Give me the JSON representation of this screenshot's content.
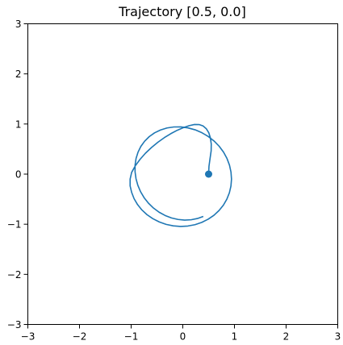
{
  "chart_data": {
    "type": "line",
    "title": "Trajectory [0.5, 0.0]",
    "xlabel": "",
    "ylabel": "",
    "xlim": [
      -3,
      3
    ],
    "ylim": [
      -3,
      3
    ],
    "xticks": [
      -3,
      -2,
      -1,
      0,
      1,
      2,
      3
    ],
    "yticks": [
      -3,
      -2,
      -1,
      0,
      1,
      2,
      3
    ],
    "grid": false,
    "series": [
      {
        "color": "#1f77b4",
        "x": [
          0.5,
          0.507,
          0.528,
          0.549,
          0.551,
          0.534,
          0.503,
          0.455,
          0.393,
          0.316,
          0.226,
          0.125,
          0.013,
          -0.107,
          -0.231,
          -0.357,
          -0.483,
          -0.606,
          -0.722,
          -0.827,
          -0.918,
          -0.99,
          -1.02,
          -1.02,
          -0.99,
          -0.943,
          -0.876,
          -0.792,
          -0.692,
          -0.579,
          -0.454,
          -0.322,
          -0.184,
          -0.043,
          0.098,
          0.236,
          0.368,
          0.491,
          0.603,
          0.702,
          0.786,
          0.853,
          0.902,
          0.932,
          0.943,
          0.933,
          0.904,
          0.856,
          0.789,
          0.705,
          0.606,
          0.493,
          0.37,
          0.239,
          0.102,
          -0.036,
          -0.173,
          -0.306,
          -0.431,
          -0.547,
          -0.65,
          -0.739,
          -0.812,
          -0.867,
          -0.905,
          -0.924,
          -0.924,
          -0.906,
          -0.87,
          -0.817,
          -0.748,
          -0.664,
          -0.567,
          -0.459,
          -0.342,
          -0.219,
          -0.092,
          0.036,
          0.162,
          0.283,
          0.397
        ],
        "y": [
          0.0,
          0.158,
          0.314,
          0.466,
          0.602,
          0.724,
          0.826,
          0.906,
          0.961,
          0.989,
          0.99,
          0.967,
          0.928,
          0.875,
          0.808,
          0.728,
          0.635,
          0.531,
          0.418,
          0.296,
          0.168,
          0.035,
          -0.1,
          -0.234,
          -0.366,
          -0.491,
          -0.608,
          -0.715,
          -0.81,
          -0.89,
          -0.955,
          -1.003,
          -1.033,
          -1.044,
          -1.036,
          -1.009,
          -0.963,
          -0.9,
          -0.821,
          -0.726,
          -0.619,
          -0.5,
          -0.372,
          -0.238,
          -0.099,
          0.04,
          0.178,
          0.311,
          0.438,
          0.555,
          0.66,
          0.751,
          0.826,
          0.884,
          0.922,
          0.942,
          0.941,
          0.921,
          0.881,
          0.823,
          0.748,
          0.657,
          0.553,
          0.437,
          0.312,
          0.18,
          0.045,
          -0.091,
          -0.224,
          -0.352,
          -0.472,
          -0.581,
          -0.678,
          -0.76,
          -0.826,
          -0.875,
          -0.905,
          -0.918,
          -0.911,
          -0.886,
          -0.844
        ]
      }
    ],
    "start_marker": {
      "x": 0.5,
      "y": 0.0
    }
  }
}
